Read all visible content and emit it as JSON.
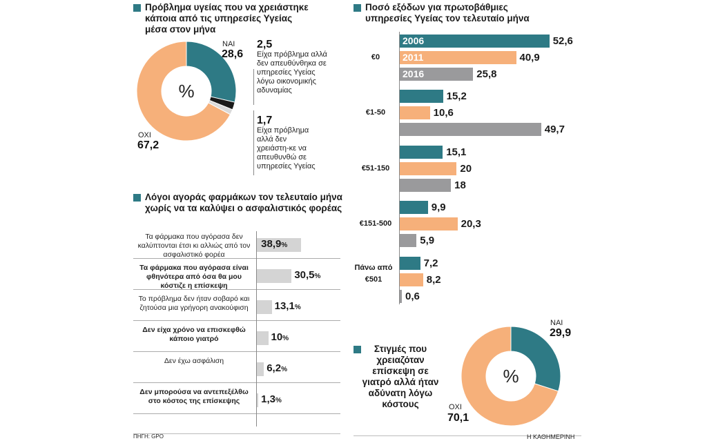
{
  "colors": {
    "teal": "#2e7a85",
    "orange": "#f6b07a",
    "gray": "#9a9a9c",
    "lightgray": "#d4d4d4"
  },
  "donut1": {
    "title": "Πρόβλημα υγείας που να χρειάστηκε κάποια από τις υπηρεσίες Υγείας μέσα στον μήνα",
    "center": "%",
    "yes_label": "ΝΑΙ",
    "yes_value": "28,6",
    "no_label": "ΟΧΙ",
    "no_value": "67,2",
    "a_value": "2,5",
    "a_text": "Είχα πρόβλημα αλλά δεν απευθύνθηκα σε υπηρεσίες Υγείας λόγω οικονομικής αδυναμίας",
    "b_value": "1,7",
    "b_text": "Είχα πρόβλημα αλλά δεν χρειάστη-κε να απευθυνθώ σε υπηρεσίες Υγείας"
  },
  "reasons": {
    "title": "Λόγοι αγοράς φαρμάκων τον τελευταίο μήνα χωρίς να τα καλύψει ο ασφαλιστικός φορέας",
    "pct": "%"
  },
  "expenses": {
    "title": "Ποσό εξόδων για πρωτοβάθμιες υπηρεσίες Υγείας τον τελευταίο μήνα"
  },
  "donut2": {
    "title": "Στιγμές που χρειαζόταν επίσκεψη σε γιατρό αλλά ήταν αδύνατη λόγω κόστους",
    "center": "%",
    "yes_label": "ΝΑΙ",
    "yes_value": "29,9",
    "no_label": "ΟΧΙ",
    "no_value": "70,1"
  },
  "footer": {
    "source": "ΠΗΓΗ: GPO",
    "brand": "Η ΚΑΘΗΜΕΡΙΝΗ"
  },
  "chart_data": [
    {
      "type": "pie",
      "title": "Πρόβλημα υγείας που να χρειάστηκε κάποια από τις υπηρεσίες Υγείας μέσα στον μήνα",
      "labels": [
        "ΝΑΙ",
        "Είχα πρόβλημα αλλά δεν απευθύνθηκα σε υπηρεσίες Υγείας λόγω οικονομικής αδυναμίας",
        "Είχα πρόβλημα αλλά δεν χρειάστη-κε να απευθυνθώ σε υπηρεσίες Υγείας",
        "ΟΧΙ"
      ],
      "values": [
        28.6,
        2.5,
        1.7,
        67.2
      ],
      "colors": [
        "#2e7a85",
        "#1a1a1a",
        "#d9d9d9",
        "#f6b07a"
      ]
    },
    {
      "type": "bar",
      "orientation": "horizontal",
      "title": "Λόγοι αγοράς φαρμάκων τον τελευταίο μήνα χωρίς να τα καλύψει ο ασφαλιστικός φορέας",
      "categories": [
        "Τα φάρμακα που αγόρασα δεν καλύπτονται έτσι κι αλλιώς από τον ασφαλιστικό φορέα",
        "Τα φάρμακα που αγόρασα είναι φθηνότερα από όσα θα μου κόστιζε η επίσκεψη",
        "Το πρόβλημα δεν ήταν σοβαρό και ζητούσα μια γρήγορη ανακούφιση",
        "Δεν είχα χρόνο να επισκεφθώ κάποιο γιατρό",
        "Δεν έχω ασφάλιση",
        "Δεν μπορούσα να αντεπεξέλθω στο κόστος της επίσκεψης"
      ],
      "bold": [
        false,
        true,
        false,
        true,
        false,
        true
      ],
      "values": [
        38.9,
        30.5,
        13.1,
        10,
        6.2,
        1.3
      ],
      "value_labels": [
        "38,9",
        "30,5",
        "13,1",
        "10",
        "6,2",
        "1,3"
      ]
    },
    {
      "type": "bar",
      "orientation": "horizontal",
      "title": "Ποσό εξόδων για πρωτοβάθμιες υπηρεσίες Υγείας τον τελευταίο μήνα",
      "categories": [
        "€0",
        "€1-50",
        "€51-150",
        "€151-500",
        "Πάνω από €501"
      ],
      "series": [
        {
          "name": "2006",
          "color": "#2e7a85",
          "values": [
            52.6,
            15.2,
            15.1,
            9.9,
            7.2
          ],
          "labels": [
            "52,6",
            "15,2",
            "15,1",
            "9,9",
            "7,2"
          ]
        },
        {
          "name": "2011",
          "color": "#f6b07a",
          "values": [
            40.9,
            10.6,
            20,
            20.3,
            8.2
          ],
          "labels": [
            "40,9",
            "10,6",
            "20",
            "20,3",
            "8,2"
          ]
        },
        {
          "name": "2016",
          "color": "#9a9a9c",
          "values": [
            25.8,
            49.7,
            18,
            5.9,
            0.6
          ],
          "labels": [
            "25,8",
            "49,7",
            "18",
            "5,9",
            "0,6"
          ]
        }
      ]
    },
    {
      "type": "pie",
      "title": "Στιγμές που χρειαζόταν επίσκεψη σε γιατρό αλλά ήταν αδύνατη λόγω κόστους",
      "labels": [
        "ΝΑΙ",
        "ΟΧΙ"
      ],
      "values": [
        29.9,
        70.1
      ],
      "colors": [
        "#2e7a85",
        "#f6b07a"
      ]
    }
  ]
}
